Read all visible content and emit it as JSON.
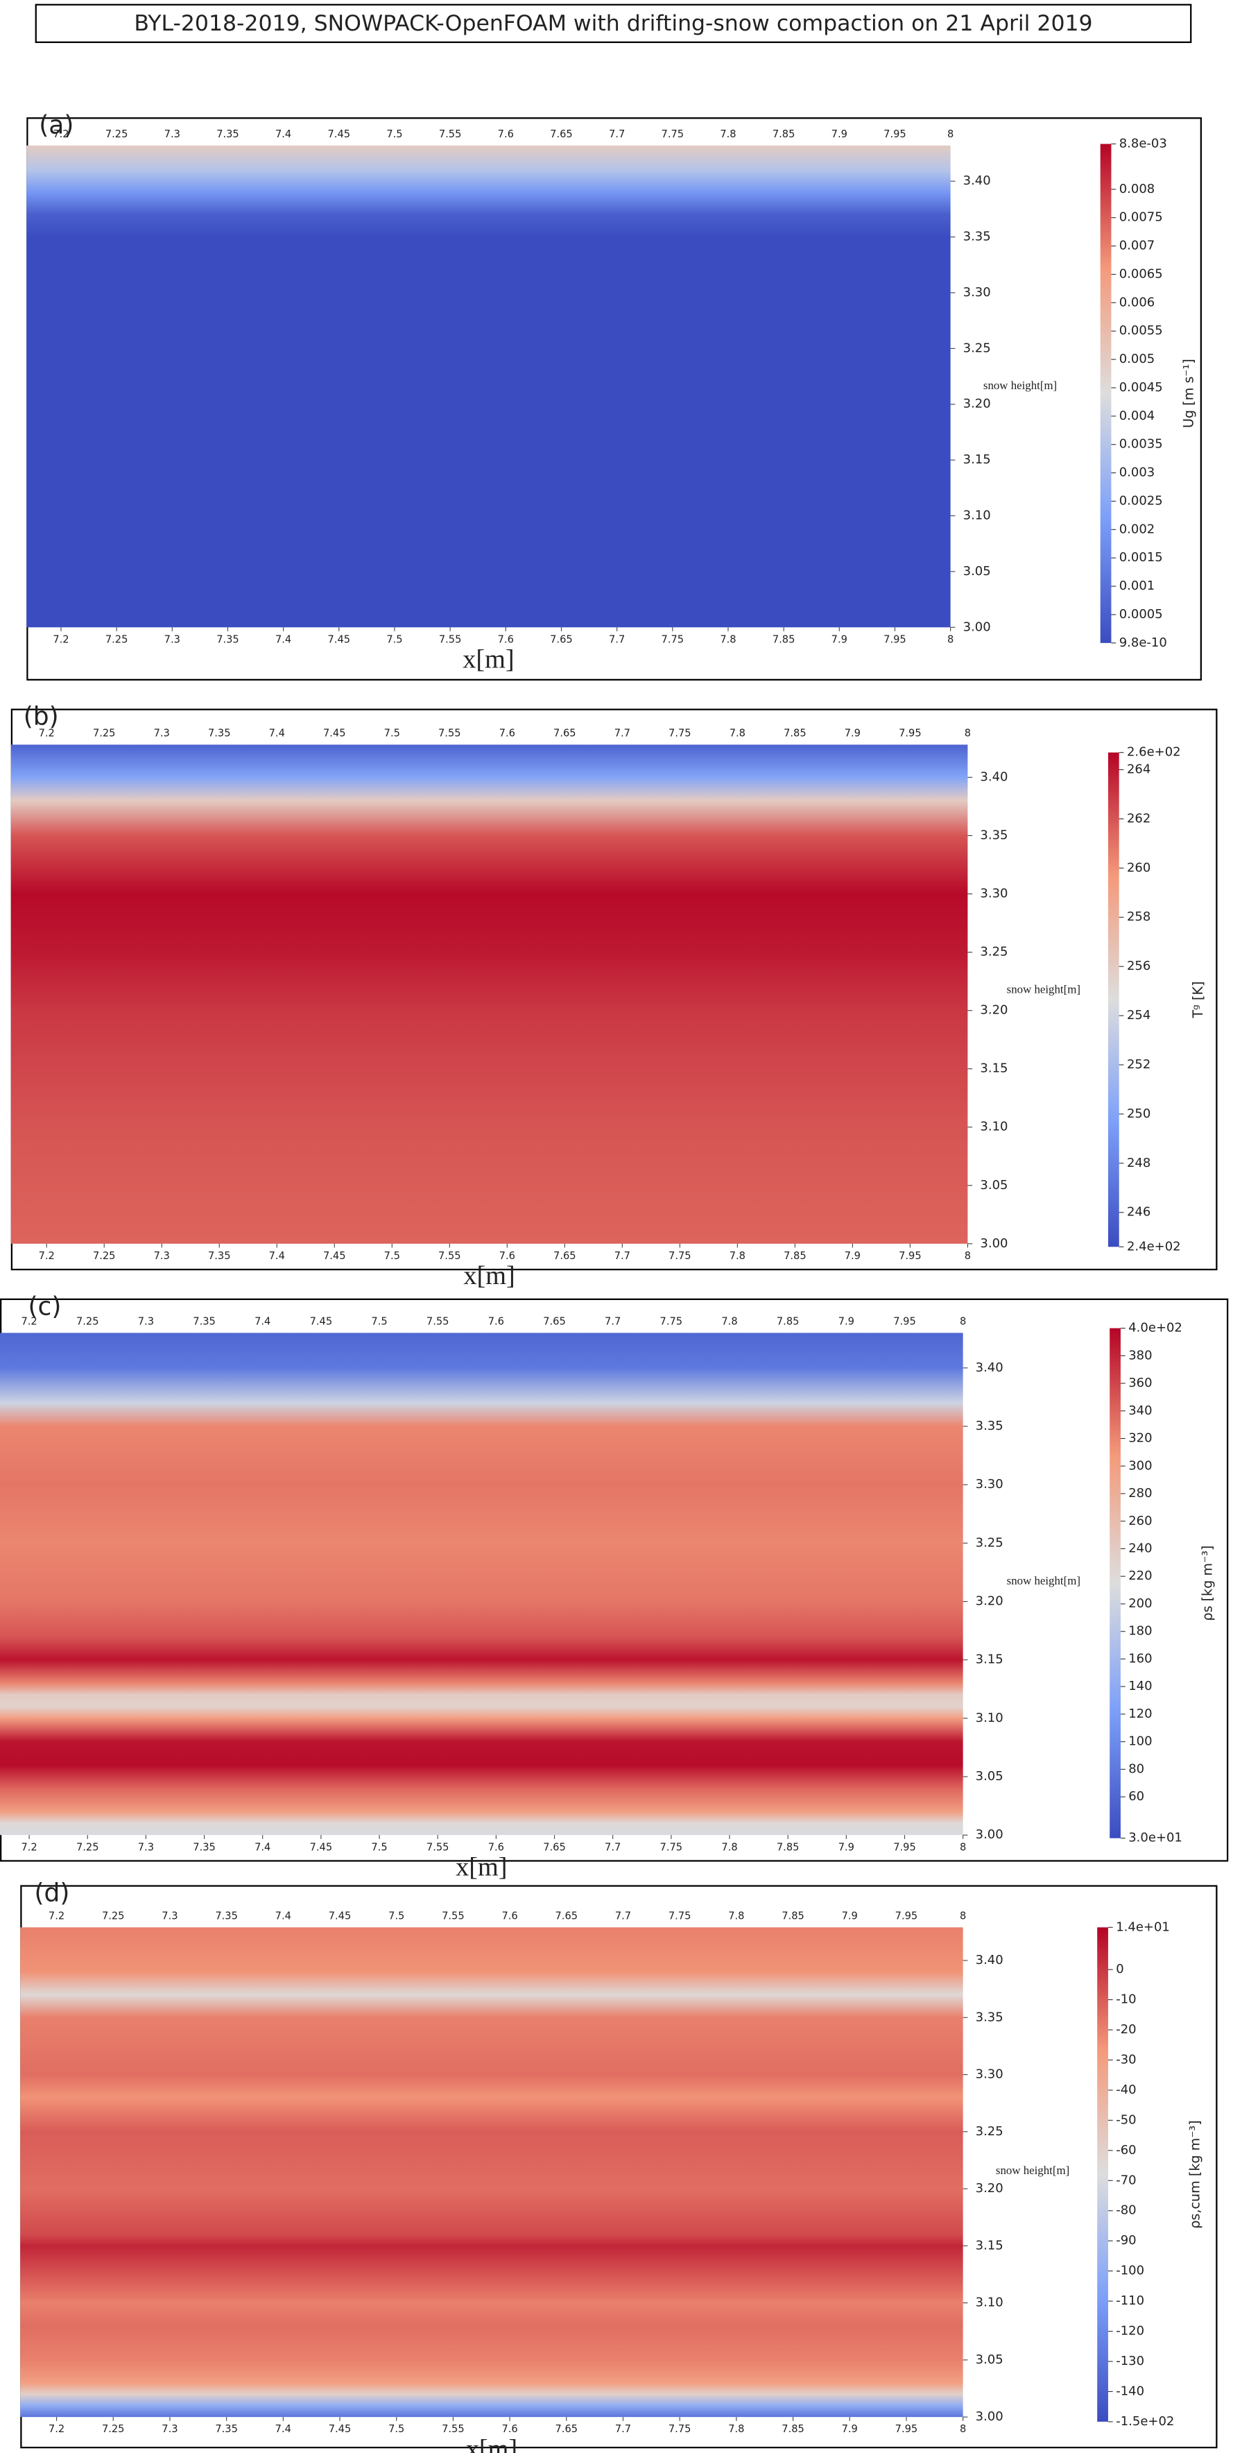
{
  "title": "BYL-2018-2019, SNOWPACK-OpenFOAM with drifting-snow compaction on 21 April 2019",
  "chart_data": [
    {
      "type": "heatmap",
      "panel_label": "(a)",
      "xlabel": "x[m]",
      "ylabel": "snow height[m]",
      "colorbar_label": "Ug [m s⁻¹]",
      "colormap": "coolwarm",
      "xlim": [
        7.169,
        8
      ],
      "ylim": [
        3.0,
        3.432
      ],
      "xticks": [
        7.2,
        7.25,
        7.3,
        7.35,
        7.4,
        7.45,
        7.5,
        7.55,
        7.6,
        7.65,
        7.7,
        7.75,
        7.8,
        7.85,
        7.9,
        7.95,
        8
      ],
      "yticks": [
        {
          "value": 3,
          "label": "3.00"
        },
        3.05,
        {
          "value": 3.1,
          "label": "3.10"
        },
        3.15,
        {
          "value": 3.2,
          "label": "3.20"
        },
        3.25,
        {
          "value": 3.3,
          "label": "3.30"
        },
        3.35,
        {
          "value": 3.4,
          "label": "3.40"
        }
      ],
      "clim": [
        9.8e-10,
        0.0088
      ],
      "cticks": [
        {
          "value": 9.8e-10,
          "label": "9.8e-10"
        },
        0.0005,
        0.001,
        0.0015,
        0.002,
        0.0025,
        0.003,
        0.0035,
        0.004,
        0.0045,
        0.005,
        0.0055,
        0.006,
        0.0065,
        0.007,
        0.0075,
        0.008,
        {
          "value": 0.0088,
          "label": "8.8e-03"
        }
      ],
      "profile": {
        "y": [
          3.0,
          3.35,
          3.37,
          3.39,
          3.41,
          3.432
        ],
        "values": [
          0,
          0,
          0.0005,
          0.002,
          0.0035,
          0.005
        ]
      }
    },
    {
      "type": "heatmap",
      "panel_label": "(b)",
      "xlabel": "x[m]",
      "ylabel": "snow height[m]",
      "colorbar_label": "Tᵍ [K]",
      "colormap": "coolwarm",
      "xlim": [
        7.169,
        8
      ],
      "ylim": [
        3.0,
        3.428
      ],
      "xticks": [
        7.2,
        7.25,
        7.3,
        7.35,
        7.4,
        7.45,
        7.5,
        7.55,
        7.6,
        7.65,
        7.7,
        7.75,
        7.8,
        7.85,
        7.9,
        7.95,
        8
      ],
      "yticks": [
        {
          "value": 3,
          "label": "3.00"
        },
        3.05,
        {
          "value": 3.1,
          "label": "3.10"
        },
        3.15,
        {
          "value": 3.2,
          "label": "3.20"
        },
        3.25,
        {
          "value": 3.3,
          "label": "3.30"
        },
        3.35,
        {
          "value": 3.4,
          "label": "3.40"
        }
      ],
      "clim": [
        244.6,
        264.7
      ],
      "cticks": [
        {
          "value": 244.6,
          "label": "2.4e+02"
        },
        246,
        248,
        250,
        252,
        254,
        256,
        258,
        260,
        262,
        264,
        {
          "value": 264.7,
          "label": "2.6e+02"
        }
      ],
      "profile": {
        "y": [
          3.0,
          3.1,
          3.2,
          3.25,
          3.3,
          3.35,
          3.38,
          3.4,
          3.428
        ],
        "values": [
          261.5,
          262,
          263,
          264,
          264.5,
          262,
          256,
          250,
          246
        ]
      }
    },
    {
      "type": "heatmap",
      "panel_label": "(c)",
      "xlabel": "x[m]",
      "ylabel": "snow height[m]",
      "colorbar_label": "ρs [kg m⁻³]",
      "colormap": "coolwarm",
      "xlim": [
        7.175,
        8
      ],
      "ylim": [
        3.0,
        3.43
      ],
      "xticks": [
        7.2,
        7.25,
        7.3,
        7.35,
        7.4,
        7.45,
        7.5,
        7.55,
        7.6,
        7.65,
        7.7,
        7.75,
        7.8,
        7.85,
        7.9,
        7.95,
        8
      ],
      "yticks": [
        {
          "value": 3,
          "label": "3.00"
        },
        3.05,
        {
          "value": 3.1,
          "label": "3.10"
        },
        3.15,
        {
          "value": 3.2,
          "label": "3.20"
        },
        3.25,
        {
          "value": 3.3,
          "label": "3.30"
        },
        3.35,
        {
          "value": 3.4,
          "label": "3.40"
        }
      ],
      "clim": [
        30,
        400
      ],
      "cticks": [
        {
          "value": 30,
          "label": "3.0e+01"
        },
        60,
        80,
        100,
        120,
        140,
        160,
        180,
        200,
        220,
        240,
        260,
        280,
        300,
        320,
        340,
        360,
        380,
        {
          "value": 400,
          "label": "4.0e+02"
        }
      ],
      "profile": {
        "y": [
          3.0,
          3.01,
          3.02,
          3.04,
          3.06,
          3.08,
          3.1,
          3.11,
          3.12,
          3.13,
          3.15,
          3.17,
          3.2,
          3.25,
          3.3,
          3.35,
          3.37,
          3.4,
          3.43
        ],
        "values": [
          210,
          220,
          300,
          340,
          395,
          390,
          300,
          230,
          240,
          320,
          390,
          350,
          330,
          320,
          330,
          320,
          200,
          80,
          60
        ]
      }
    },
    {
      "type": "heatmap",
      "panel_label": "(d)",
      "xlabel": "x[m]",
      "ylabel": "snow height[m]",
      "colorbar_label": "ρs,cum [kg m⁻³]",
      "colormap": "coolwarm",
      "xlim": [
        7.168,
        8
      ],
      "ylim": [
        3.0,
        3.429
      ],
      "xticks": [
        7.2,
        7.25,
        7.3,
        7.35,
        7.4,
        7.45,
        7.5,
        7.55,
        7.6,
        7.65,
        7.7,
        7.75,
        7.8,
        7.85,
        7.9,
        7.95,
        8
      ],
      "yticks": [
        {
          "value": 3,
          "label": "3.00"
        },
        3.05,
        {
          "value": 3.1,
          "label": "3.10"
        },
        3.15,
        {
          "value": 3.2,
          "label": "3.20"
        },
        3.25,
        {
          "value": 3.3,
          "label": "3.30"
        },
        3.35,
        {
          "value": 3.4,
          "label": "3.40"
        }
      ],
      "clim": [
        -150,
        14
      ],
      "cticks": [
        {
          "value": -150,
          "label": "-1.5e+02"
        },
        -140,
        -130,
        -120,
        -110,
        -100,
        -90,
        -80,
        -70,
        -60,
        -50,
        -40,
        -30,
        -20,
        -10,
        0,
        {
          "value": 14,
          "label": "1.4e+01"
        }
      ],
      "profile": {
        "y": [
          3.0,
          3.01,
          3.02,
          3.03,
          3.05,
          3.08,
          3.1,
          3.13,
          3.15,
          3.16,
          3.2,
          3.25,
          3.28,
          3.3,
          3.35,
          3.37,
          3.39,
          3.429
        ],
        "values": [
          -130,
          -100,
          -60,
          -30,
          -20,
          -15,
          -20,
          -5,
          5,
          -5,
          -15,
          -10,
          -25,
          -15,
          -20,
          -65,
          -25,
          -20
        ]
      }
    }
  ]
}
